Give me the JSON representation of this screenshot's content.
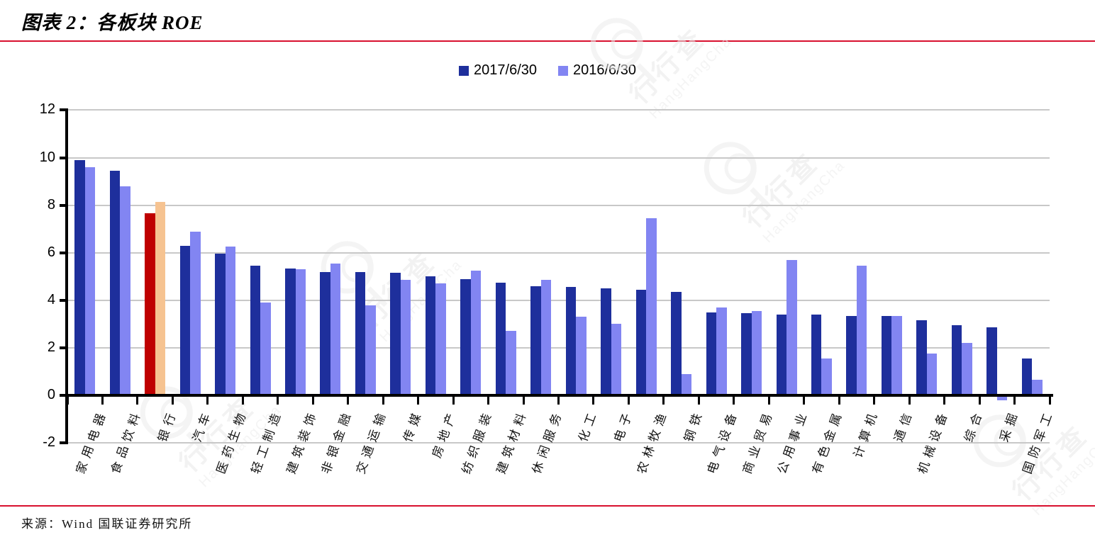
{
  "title": "图表 2：各板块 ROE",
  "source": "来源：Wind 国联证券研究所",
  "watermark": {
    "cn": "行行查",
    "en": "HangHangCha"
  },
  "chart_data": {
    "type": "bar",
    "title": "各板块 ROE",
    "xlabel": "",
    "ylabel": "",
    "ylim": [
      -2,
      12
    ],
    "yticks": [
      -2,
      0,
      2,
      4,
      6,
      8,
      10,
      12
    ],
    "grid": true,
    "legend_position": "top",
    "categories": [
      "家用电器",
      "食品饮料",
      "银行",
      "汽车",
      "医药生物",
      "轻工制造",
      "建筑装饰",
      "非银金融",
      "交通运输",
      "传媒",
      "房地产",
      "纺织服装",
      "建筑材料",
      "休闲服务",
      "化工",
      "电子",
      "农林牧渔",
      "钢铁",
      "电气设备",
      "商业贸易",
      "公用事业",
      "有色金属",
      "计算机",
      "通信",
      "机械设备",
      "综合",
      "采掘",
      "国防军工"
    ],
    "series": [
      {
        "name": "2017/6/30",
        "color": "#1E2F9C",
        "values": [
          9.9,
          9.45,
          7.65,
          6.3,
          5.95,
          5.45,
          5.35,
          5.2,
          5.2,
          5.15,
          5.0,
          4.9,
          4.75,
          4.6,
          4.55,
          4.5,
          4.45,
          4.35,
          3.5,
          3.45,
          3.4,
          3.4,
          3.35,
          3.35,
          3.15,
          2.95,
          2.85,
          1.55
        ]
      },
      {
        "name": "2016/6/30",
        "color": "#8285F2",
        "values": [
          9.6,
          8.8,
          8.15,
          6.9,
          6.25,
          3.9,
          5.3,
          5.55,
          3.8,
          4.85,
          4.7,
          5.25,
          2.7,
          4.85,
          3.3,
          3.0,
          7.45,
          0.9,
          3.7,
          3.55,
          5.7,
          1.55,
          5.45,
          3.35,
          1.75,
          2.2,
          -0.15,
          0.65
        ]
      }
    ],
    "highlight": {
      "category": "银行",
      "series_colors": [
        "#BF0000",
        "#F6C391"
      ]
    }
  }
}
